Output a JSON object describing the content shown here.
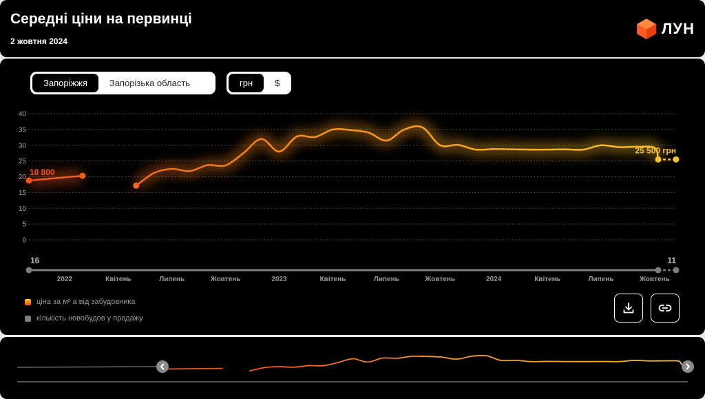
{
  "header": {
    "title": "Середні ціни на первинці",
    "date": "2 жовтня 2024",
    "logo_text": "ЛУН"
  },
  "controls": {
    "region_options": [
      "Запоріжжя",
      "Запорізька область"
    ],
    "region_selected": 0,
    "currency_options": [
      "грн",
      "$"
    ],
    "currency_selected": 0
  },
  "colors": {
    "price_start": "#f2521c",
    "price_end": "#f7c02c",
    "count_line": "#7d7d7d",
    "grid": "#5a5a5a"
  },
  "chart_data": {
    "type": "line",
    "y_ticks": [
      0,
      5,
      10,
      15,
      20,
      25,
      30,
      35,
      40
    ],
    "ylim": [
      0,
      40
    ],
    "x_ticks": [
      {
        "label": "2022",
        "x": 2.0
      },
      {
        "label": "Квітень",
        "x": 5.0
      },
      {
        "label": "Липень",
        "x": 8.0
      },
      {
        "label": "Жовтень",
        "x": 11.0
      },
      {
        "label": "2023",
        "x": 14.0
      },
      {
        "label": "Квітень",
        "x": 17.0
      },
      {
        "label": "Липень",
        "x": 20.0
      },
      {
        "label": "Жовтень",
        "x": 23.0
      },
      {
        "label": "2024",
        "x": 26.0
      },
      {
        "label": "Квітень",
        "x": 29.0
      },
      {
        "label": "Липень",
        "x": 32.0
      },
      {
        "label": "Жовтень",
        "x": 35.0
      }
    ],
    "xlim": [
      0,
      36.2
    ],
    "series": [
      {
        "key": "price",
        "name": "ціна за м² а від забудовника",
        "segments": [
          [
            [
              0,
              18.8
            ],
            [
              3.0,
              20.3
            ]
          ],
          [
            [
              6.0,
              17.2
            ],
            [
              7.0,
              21.2
            ],
            [
              8.0,
              22.5
            ],
            [
              9.0,
              21.8
            ],
            [
              10.0,
              23.7
            ],
            [
              11.0,
              23.6
            ],
            [
              12.0,
              27.5
            ],
            [
              13.0,
              32.0
            ],
            [
              14.0,
              28.0
            ],
            [
              15.0,
              32.8
            ],
            [
              16.0,
              32.6
            ],
            [
              17.0,
              35.0
            ],
            [
              18.0,
              34.8
            ],
            [
              19.0,
              34.0
            ],
            [
              20.0,
              31.5
            ],
            [
              21.0,
              35.0
            ],
            [
              22.0,
              35.7
            ],
            [
              23.0,
              30.0
            ],
            [
              24.0,
              30.1
            ],
            [
              25.0,
              28.6
            ],
            [
              26.0,
              28.8
            ],
            [
              27.0,
              28.7
            ],
            [
              28.0,
              28.6
            ],
            [
              29.0,
              28.6
            ],
            [
              30.0,
              28.7
            ],
            [
              31.0,
              28.6
            ],
            [
              32.0,
              30.0
            ],
            [
              33.0,
              29.4
            ],
            [
              34.0,
              29.5
            ],
            [
              35.0,
              29.2
            ],
            [
              35.2,
              25.5
            ]
          ]
        ],
        "projection": [
          [
            35.2,
            25.5
          ],
          [
            36.2,
            25.5
          ]
        ],
        "first_label": "18 800",
        "last_label": "25 500 грн"
      },
      {
        "key": "count",
        "name": "кількість новобудов у продажу",
        "values": [
          [
            0,
            16
          ],
          [
            35.2,
            11
          ],
          [
            36.2,
            11
          ]
        ],
        "first_label": "16",
        "last_label": "11"
      }
    ]
  }
}
